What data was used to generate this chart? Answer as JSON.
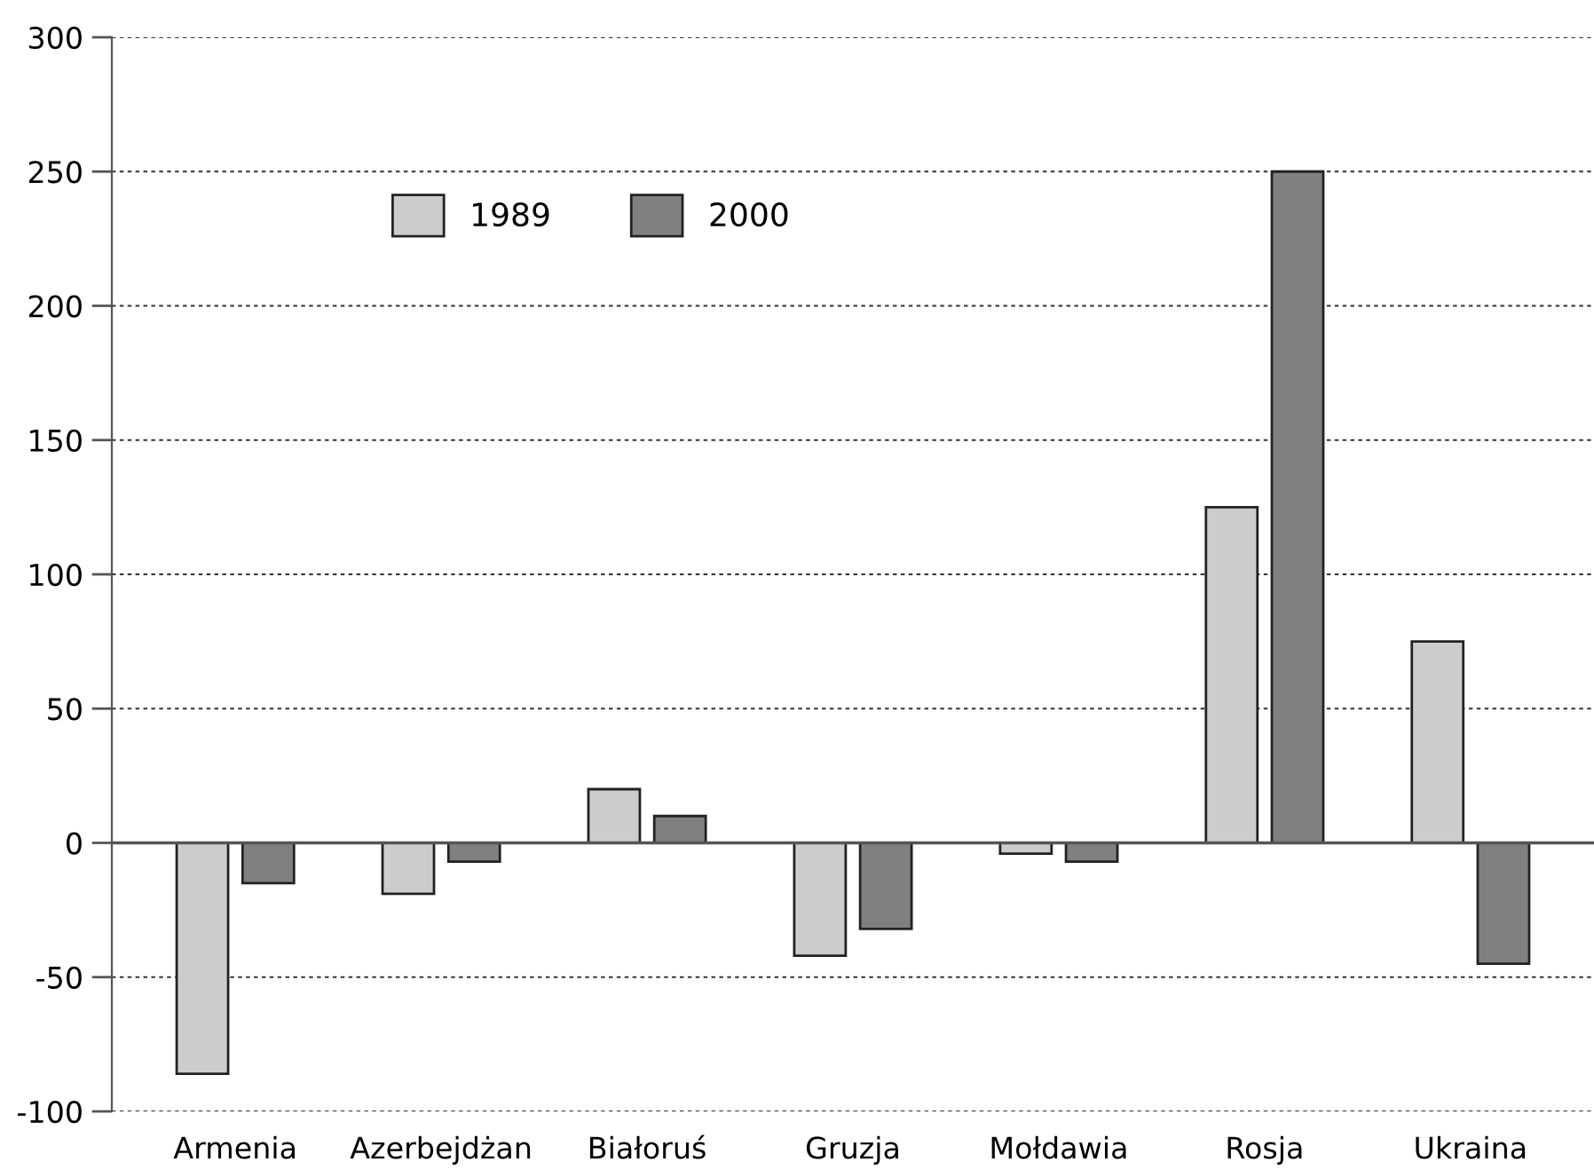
{
  "chart_data": {
    "type": "bar",
    "categories": [
      "Armenia",
      "Azerbejdżan",
      "Białoruś",
      "Gruzja",
      "Mołdawia",
      "Rosja",
      "Ukraina"
    ],
    "series": [
      {
        "name": "1989",
        "color": "#cccccc",
        "values": [
          -86,
          -19,
          20,
          -42,
          -4,
          125,
          75
        ]
      },
      {
        "name": "2000",
        "color": "#808080",
        "values": [
          -15,
          -7,
          10,
          -32,
          -7,
          250,
          -45
        ]
      }
    ],
    "ylim": [
      -100,
      300
    ],
    "yticks": [
      -100,
      -50,
      0,
      50,
      100,
      150,
      200,
      250,
      300
    ],
    "grid": "y",
    "legend": "top left"
  }
}
